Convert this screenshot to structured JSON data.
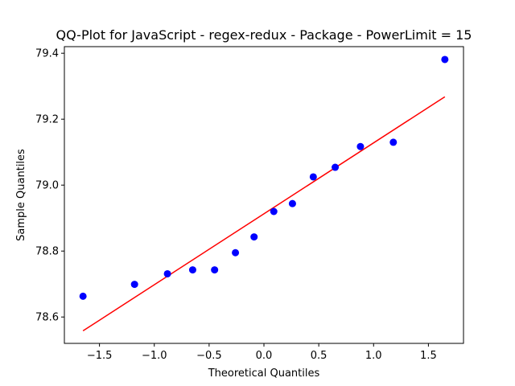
{
  "chart_data": {
    "type": "scatter",
    "title": "QQ-Plot for JavaScript - regex-redux - Package - PowerLimit = 15",
    "xlabel": "Theoretical Quantiles",
    "ylabel": "Sample Quantiles",
    "xlim": [
      -1.82,
      1.82
    ],
    "ylim": [
      78.52,
      79.42
    ],
    "xticks": [
      -1.5,
      -1.0,
      -0.5,
      0.0,
      0.5,
      1.0,
      1.5
    ],
    "xtick_labels": [
      "−1.5",
      "−1.0",
      "−0.5",
      "0.0",
      "0.5",
      "1.0",
      "1.5"
    ],
    "yticks": [
      78.6,
      78.8,
      79.0,
      79.2,
      79.4
    ],
    "ytick_labels": [
      "78.6",
      "78.8",
      "79.0",
      "79.2",
      "79.4"
    ],
    "grid": false,
    "points": {
      "color": "#0000ff",
      "x": [
        -1.65,
        -1.18,
        -0.88,
        -0.65,
        -0.45,
        -0.26,
        -0.09,
        0.09,
        0.26,
        0.45,
        0.65,
        0.88,
        1.18,
        1.65
      ],
      "y": [
        78.663,
        78.699,
        78.731,
        78.743,
        78.743,
        78.795,
        78.843,
        78.92,
        78.944,
        79.025,
        79.054,
        79.117,
        79.13,
        79.381
      ]
    },
    "fit_line": {
      "color": "#ff0000",
      "x": [
        -1.65,
        1.65
      ],
      "y": [
        78.558,
        79.268
      ]
    }
  }
}
